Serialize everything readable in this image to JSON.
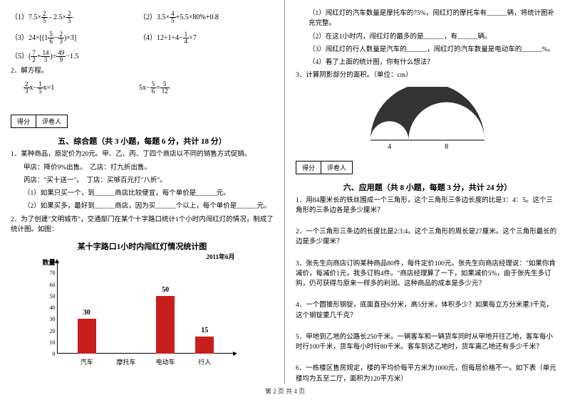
{
  "left": {
    "formulas": {
      "r1a": "（1）7.5×",
      "r1a_f1": [
        "2",
        "5"
      ],
      "r1a_mid": " - 2.5×",
      "r1a_f2": [
        "2",
        "5"
      ],
      "r1b": "（2）",
      "r1b_expr": "3.5×",
      "r1b_f1": [
        "4",
        "5"
      ],
      "r1b_end": "+5.5×80%+0.8",
      "r2a": "（3）",
      "r2a_pre": "24×",
      "r2a_f1": [
        "5",
        "6"
      ],
      "r2a_f2": [
        "2",
        "3"
      ],
      "r2b": "（4）12÷1÷4−",
      "r2b_f1": [
        "1",
        "4"
      ],
      "r2b_end": "×7",
      "r3": "（5）",
      "r3_f1": [
        "7",
        "2"
      ],
      "r3_f2": [
        "14",
        "3"
      ],
      "r3_f3": [
        "49",
        "9"
      ],
      "r3_end": "−1.5"
    },
    "q2": "2．解方程。",
    "eq1_f1": [
      "2",
      "3"
    ],
    "eq1_mid": "x−",
    "eq1_f2": [
      "1",
      "5"
    ],
    "eq1_end": "x=1",
    "eq2": "5x−",
    "eq2_f1": [
      "5",
      "6"
    ],
    "eq2_mid": "=",
    "eq2_f2": [
      "5",
      "12"
    ],
    "score": {
      "c1": "得分",
      "c2": "评卷人"
    },
    "s5_title": "五、综合题（共 3 小题，每题 6 分，共计 18 分）",
    "s5_q1": "1．某种商品，原定价为20元。甲、乙、丙、丁四个商店以不同的销售方式促销。",
    "s5_q1_a": "甲店：降价9%出售。　乙店：打九折出售。",
    "s5_q1_b": "丙店：\"买十送一\"。　丁店：买够百元打\"八折\"。",
    "s5_q1_c": "（1）如果只买一个，到______商店比较便宜，每个单价是______元。",
    "s5_q1_d": "（2）如果买多，最好到______商店，因为买______个以上，每个单价是______元。",
    "s5_q2": "2．为了创建\"文明城市\"，交通部门在某个十字路口统计1个小时内闯红灯的情况，制成了统计图。如图：",
    "chart": {
      "title": "某十字路口1小时内闯红灯情况统计图",
      "date": "2011年6月",
      "ytitle": "数量",
      "ymax": 80,
      "ystep": 10,
      "categories": [
        "汽车",
        "摩托车",
        "电动车",
        "行人"
      ],
      "values": [
        30,
        0,
        50,
        15
      ],
      "bar_color": "#c81e1e",
      "show_values": [
        true,
        false,
        true,
        true
      ]
    }
  },
  "right": {
    "q1": "（1）闯红灯的汽车数量是摩托车的75%，闯红灯的摩托车有______辆，将统计图补充完整。",
    "q2": "（2）在这1小时内，闯红灯的最多的是______，有______辆。",
    "q3": "（3）闯红灯的行人数量是汽车的______，闯红灯的汽车数量是电动车的______%。",
    "q4": "（4）看了上面的统计图，你有什么想法？",
    "q5": "3．计算阴影部分的面积。（单位：cm）",
    "arc": {
      "r1": 4,
      "r2": 8,
      "label1": "4",
      "label2": "8",
      "width": 160,
      "height": 85
    },
    "score": {
      "c1": "得分",
      "c2": "评卷人"
    },
    "s6_title": "六、应用题（共 8 小题，每题 3 分，共计 24 分）",
    "s6_q1": "1．用84厘米长的铁丝围成一个三角形，这个三角形三条边长度的比是3：4：5。这个三角形的三条边各是多少厘米？",
    "s6_q2": "2．一个三角形三条边的长度比是2:3:4。这个三角形的周长是27厘米。这个三角形最长的边是多少厘米？",
    "s6_q3": "3．张先生向商店订购某种商品80件，每件定价100元。张先生向商店经理说：\"如果你肯减价，每减价1元，我多订购4件。\"商店经理算了一下，如果减价5%，由于张先生多订购，仍可获得与原来一样多的利润。这种商品的成本是多少元？",
    "s6_q4": "4．一个圆锥形钢锭，底面直径6分米，高5分米，体积多少？如果每立方分米重3千克，这个钢锭重几千克？",
    "s6_q5": "5．甲地到乙地的公路长250千米。一辆客车和一辆货车同时从甲地开往乙地，客车每小时行100千米，货车每小时行80千米。客车到达乙地时，货车离乙地还有多少千米？",
    "s6_q6": "6．一栋楼区售房规定，楼的平均价每平方米为1000元，但每层价格不一。如下表（单元楼均为五至二厅，面积为120平方米）"
  },
  "footer": "第 2 页 共 4 页"
}
